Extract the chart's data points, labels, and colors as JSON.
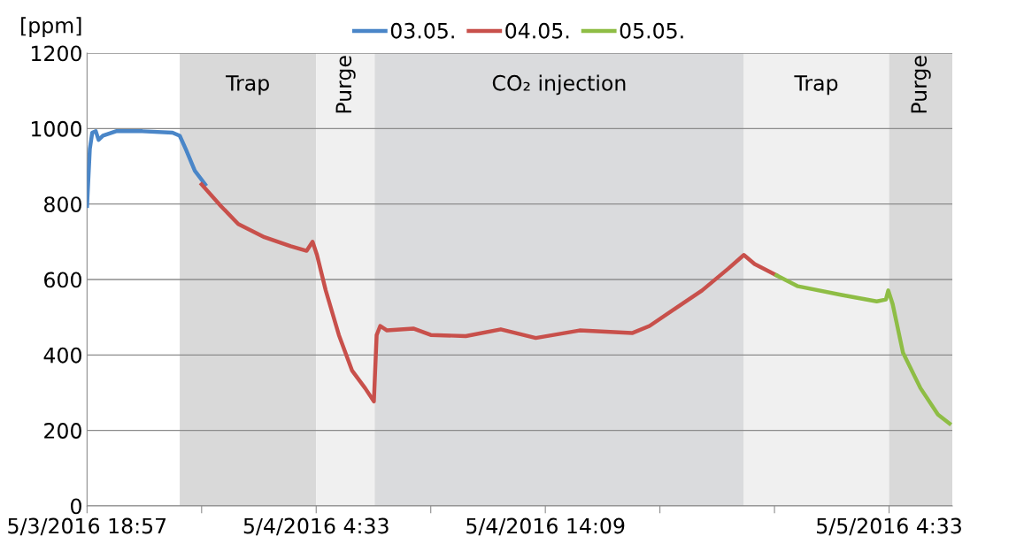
{
  "chart_data": {
    "type": "line",
    "ylabel": "[ppm]",
    "xlim": [
      "2016-05-03T18:57",
      "2016-05-05T07:12"
    ],
    "ylim": [
      0,
      1200
    ],
    "yticks": [
      0,
      200,
      400,
      600,
      800,
      1000,
      1200
    ],
    "xticks": [
      {
        "value": "2016-05-03T18:57",
        "label": "5/3/2016 18:57"
      },
      {
        "value": "2016-05-03T23:45",
        "label": null
      },
      {
        "value": "2016-05-04T04:33",
        "label": "5/4/2016 4:33"
      },
      {
        "value": "2016-05-04T09:21",
        "label": null
      },
      {
        "value": "2016-05-04T14:09",
        "label": "5/4/2016 14:09"
      },
      {
        "value": "2016-05-04T18:57",
        "label": null
      },
      {
        "value": "2016-05-04T23:45",
        "label": null
      },
      {
        "value": "2016-05-05T04:33",
        "label": "5/5/2016 4:33"
      }
    ],
    "grid": "y",
    "legend": "top",
    "line_style": "solid",
    "marker": "none",
    "bands": [
      {
        "axis": "x",
        "from": "2016-05-03T22:50",
        "to": "2016-05-04T04:33",
        "label": "Trap",
        "color": "#d9d9d9"
      },
      {
        "axis": "x",
        "from": "2016-05-04T04:33",
        "to": "2016-05-04T07:00",
        "label": "Purge",
        "color": "#f0f0f0"
      },
      {
        "axis": "x",
        "from": "2016-05-04T07:00",
        "to": "2016-05-04T22:28",
        "label": "CO₂ injection",
        "color": "#dadbdd"
      },
      {
        "axis": "x",
        "from": "2016-05-04T22:28",
        "to": "2016-05-05T04:33",
        "label": "Trap",
        "color": "#f0f0f0"
      },
      {
        "axis": "x",
        "from": "2016-05-05T04:33",
        "to": "2016-05-05T07:12",
        "label": "Purge",
        "color": "#d9d9d9"
      }
    ],
    "series": [
      {
        "name": "03.05.",
        "color": "#4a86c8",
        "x": [
          "2016-05-03T18:57",
          "2016-05-03T19:04",
          "2016-05-03T19:10",
          "2016-05-03T19:19",
          "2016-05-03T19:26",
          "2016-05-03T19:37",
          "2016-05-03T20:10",
          "2016-05-03T21:16",
          "2016-05-03T22:32",
          "2016-05-03T22:50",
          "2016-05-03T23:05",
          "2016-05-03T23:28",
          "2016-05-03T23:54"
        ],
        "values": [
          795,
          946,
          989,
          993,
          970,
          981,
          993,
          993,
          989,
          981,
          946,
          888,
          852
        ]
      },
      {
        "name": "04.05.",
        "color": "#c8504b",
        "x": [
          "2016-05-03T23:45",
          "2016-05-04T00:34",
          "2016-05-04T01:17",
          "2016-05-04T02:23",
          "2016-05-04T03:29",
          "2016-05-04T04:09",
          "2016-05-04T04:24",
          "2016-05-04T04:35",
          "2016-05-04T04:57",
          "2016-05-04T05:30",
          "2016-05-04T06:03",
          "2016-05-04T06:36",
          "2016-05-04T06:58",
          "2016-05-04T07:05",
          "2016-05-04T07:14",
          "2016-05-04T07:31",
          "2016-05-04T08:37",
          "2016-05-04T09:21",
          "2016-05-04T10:49",
          "2016-05-04T12:17",
          "2016-05-04T13:45",
          "2016-05-04T15:35",
          "2016-05-04T17:47",
          "2016-05-04T18:31",
          "2016-05-04T19:37",
          "2016-05-04T20:43",
          "2016-05-04T21:49",
          "2016-05-04T22:28",
          "2016-05-04T22:55",
          "2016-05-04T23:50"
        ],
        "values": [
          852,
          794,
          747,
          712,
          688,
          676,
          700,
          665,
          571,
          453,
          359,
          312,
          277,
          453,
          477,
          465,
          470,
          453,
          450,
          468,
          445,
          465,
          458,
          477,
          524,
          571,
          629,
          665,
          641,
          611
        ]
      },
      {
        "name": "05.05.",
        "color": "#8ebd45",
        "x": [
          "2016-05-04T23:50",
          "2016-05-05T00:44",
          "2016-05-05T02:34",
          "2016-05-05T04:02",
          "2016-05-05T04:25",
          "2016-05-05T04:31",
          "2016-05-05T04:42",
          "2016-05-05T05:08",
          "2016-05-05T05:52",
          "2016-05-05T06:36",
          "2016-05-05T07:05"
        ],
        "values": [
          611,
          582,
          559,
          542,
          547,
          571,
          535,
          406,
          312,
          242,
          218
        ]
      }
    ]
  }
}
